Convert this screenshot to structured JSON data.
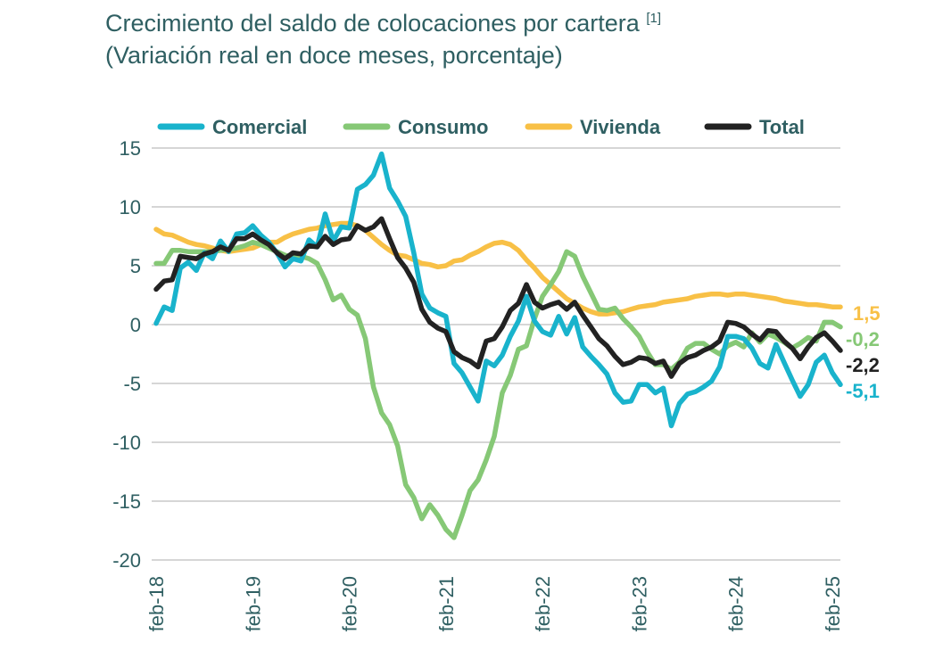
{
  "title": {
    "line1": "Crecimiento del saldo de colocaciones por cartera",
    "note": "[1]",
    "line2": "(Variación real en doce meses, porcentaje)"
  },
  "chart_data": {
    "type": "line",
    "x_tick_labels": [
      "feb-18",
      "feb-19",
      "feb-20",
      "feb-21",
      "feb-22",
      "feb-23",
      "feb-24",
      "feb-25"
    ],
    "y_ticks": [
      15,
      10,
      5,
      0,
      -5,
      -10,
      -15,
      -20
    ],
    "y_tick_labels": [
      "15",
      "10",
      "5",
      "0",
      "-5",
      "-10",
      "-15",
      "-20"
    ],
    "ylim": [
      -20,
      15
    ],
    "grid": "horizontal",
    "legend_position": "top",
    "series": [
      {
        "name": "Comercial",
        "color": "#19b3cc",
        "end_label": "-5,1",
        "values": [
          0.1,
          1.5,
          1.2,
          4.8,
          5.3,
          4.6,
          6.1,
          5.6,
          7.1,
          6.2,
          7.7,
          7.8,
          8.4,
          7.6,
          7.0,
          6.1,
          4.9,
          5.6,
          5.4,
          7.2,
          6.6,
          9.4,
          7.1,
          8.3,
          8.2,
          11.5,
          11.9,
          12.7,
          14.5,
          11.6,
          10.5,
          9.2,
          6.1,
          2.6,
          1.4,
          1.0,
          0.7,
          -3.3,
          -4.1,
          -5.3,
          -6.5,
          -3.1,
          -3.5,
          -2.6,
          -1.0,
          0.3,
          2.4,
          0.3,
          -0.6,
          -0.9,
          0.7,
          -0.8,
          0.6,
          -1.9,
          -2.7,
          -3.4,
          -4.2,
          -5.8,
          -6.6,
          -6.5,
          -5.1,
          -5.1,
          -5.8,
          -5.4,
          -8.6,
          -6.7,
          -5.9,
          -5.7,
          -5.3,
          -4.8,
          -3.6,
          -1.0,
          -1.0,
          -1.2,
          -2.0,
          -3.3,
          -3.7,
          -1.7,
          -3.2,
          -4.7,
          -6.1,
          -5.1,
          -3.2,
          -2.6,
          -4.1,
          -5.1
        ]
      },
      {
        "name": "Consumo",
        "color": "#86c876",
        "end_label": "-0,2",
        "values": [
          5.2,
          5.2,
          6.3,
          6.3,
          6.2,
          6.2,
          6.2,
          6.2,
          6.3,
          6.4,
          6.5,
          6.7,
          7.0,
          6.8,
          6.5,
          6.2,
          5.9,
          5.7,
          5.8,
          5.6,
          5.2,
          3.8,
          2.1,
          2.5,
          1.3,
          0.8,
          -1.2,
          -5.3,
          -7.5,
          -8.5,
          -10.3,
          -13.6,
          -14.7,
          -16.5,
          -15.3,
          -16.2,
          -17.4,
          -18.1,
          -16.2,
          -14.1,
          -13.2,
          -11.5,
          -9.5,
          -5.8,
          -4.3,
          -2.1,
          -1.8,
          0.5,
          2.4,
          3.4,
          4.5,
          6.2,
          5.8,
          4.1,
          2.7,
          1.3,
          1.2,
          1.4,
          0.5,
          -0.2,
          -1.0,
          -2.3,
          -3.4,
          -3.4,
          -3.8,
          -3.2,
          -2.0,
          -1.6,
          -1.6,
          -2.1,
          -2.5,
          -1.8,
          -1.5,
          -1.9,
          -0.7,
          -1.5,
          -0.8,
          -1.1,
          -1.5,
          -2.0,
          -1.6,
          -1.1,
          -1.4,
          0.2,
          0.2,
          -0.2
        ]
      },
      {
        "name": "Vivienda",
        "color": "#f8c046",
        "end_label": "1,5",
        "values": [
          8.1,
          7.7,
          7.6,
          7.3,
          7.0,
          6.8,
          6.7,
          6.5,
          6.3,
          6.2,
          6.3,
          6.4,
          6.5,
          6.8,
          7.0,
          7.0,
          7.4,
          7.7,
          7.9,
          8.1,
          8.2,
          8.4,
          8.5,
          8.6,
          8.6,
          8.4,
          8.0,
          7.4,
          6.8,
          6.3,
          5.9,
          5.8,
          5.5,
          5.2,
          5.1,
          4.9,
          5.0,
          5.4,
          5.5,
          5.9,
          6.2,
          6.6,
          6.9,
          7.0,
          6.8,
          6.3,
          5.5,
          4.8,
          4.0,
          3.4,
          2.8,
          2.2,
          1.8,
          1.4,
          1.1,
          0.9,
          0.9,
          1.0,
          1.1,
          1.3,
          1.5,
          1.6,
          1.7,
          1.9,
          2.0,
          2.1,
          2.2,
          2.4,
          2.5,
          2.6,
          2.6,
          2.5,
          2.6,
          2.6,
          2.5,
          2.4,
          2.3,
          2.2,
          2.0,
          1.9,
          1.8,
          1.7,
          1.7,
          1.6,
          1.5,
          1.5
        ]
      },
      {
        "name": "Total",
        "color": "#222222",
        "end_label": "-2,2",
        "values": [
          3.0,
          3.7,
          3.8,
          5.8,
          5.7,
          5.6,
          6.0,
          6.2,
          6.6,
          6.3,
          7.3,
          7.3,
          7.7,
          7.2,
          6.8,
          6.1,
          5.6,
          6.1,
          6.0,
          6.7,
          6.6,
          7.5,
          6.8,
          7.2,
          7.3,
          8.4,
          8.0,
          8.3,
          9.0,
          7.3,
          5.7,
          4.8,
          3.6,
          1.3,
          0.2,
          -0.3,
          -0.6,
          -2.3,
          -2.8,
          -3.1,
          -3.6,
          -1.4,
          -1.2,
          -0.2,
          1.2,
          1.8,
          3.4,
          1.9,
          1.4,
          1.7,
          1.9,
          1.3,
          1.9,
          0.8,
          -0.2,
          -1.2,
          -1.8,
          -2.7,
          -3.4,
          -3.2,
          -2.8,
          -2.9,
          -3.3,
          -3.1,
          -4.4,
          -3.3,
          -2.8,
          -2.6,
          -2.2,
          -1.9,
          -1.4,
          0.2,
          0.1,
          -0.2,
          -0.8,
          -1.3,
          -0.5,
          -0.6,
          -1.4,
          -2.0,
          -2.9,
          -1.9,
          -1.1,
          -0.7,
          -1.4,
          -2.2
        ]
      }
    ]
  }
}
